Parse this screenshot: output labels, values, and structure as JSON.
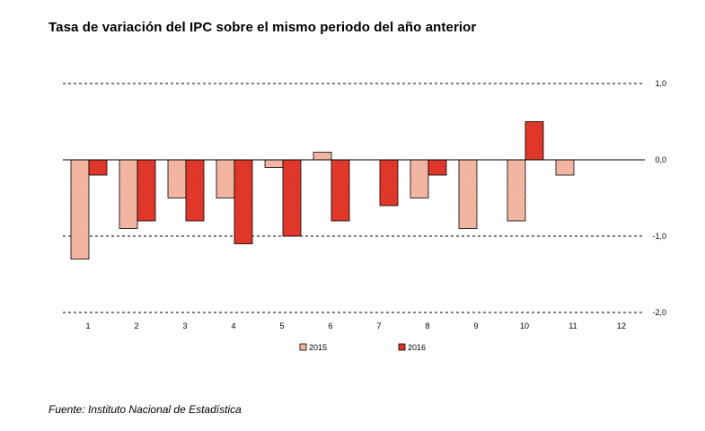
{
  "title": "Tasa de variación del IPC sobre el mismo periodo del año anterior",
  "source": "Fuente: Instituto Nacional de Estadística",
  "chart_data": {
    "type": "bar",
    "categories": [
      "1",
      "2",
      "3",
      "4",
      "5",
      "6",
      "7",
      "8",
      "9",
      "10",
      "11",
      "12"
    ],
    "series": [
      {
        "name": "2015",
        "color": "#f4b9a6",
        "values": [
          -1.3,
          -0.9,
          -0.5,
          -0.5,
          -0.1,
          0.1,
          null,
          -0.5,
          -0.9,
          -0.8,
          -0.2,
          null
        ]
      },
      {
        "name": "2016",
        "color": "#e2392b",
        "values": [
          -0.2,
          -0.8,
          -0.8,
          -1.1,
          -1.0,
          -0.8,
          -0.6,
          -0.2,
          null,
          0.5,
          null,
          null
        ]
      }
    ],
    "ylim": [
      -2.0,
      1.0
    ],
    "yticks": [
      {
        "value": 1.0,
        "label": "1,0"
      },
      {
        "value": 0.0,
        "label": "0,0"
      },
      {
        "value": -1.0,
        "label": "-1,0"
      },
      {
        "value": -2.0,
        "label": "-2,0"
      }
    ],
    "grid": true,
    "legend_position": "bottom"
  }
}
